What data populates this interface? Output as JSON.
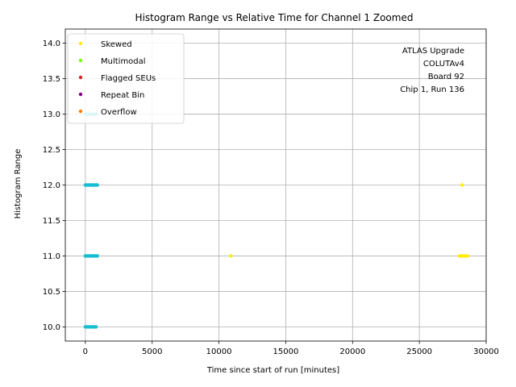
{
  "chart_data": {
    "type": "scatter",
    "title": "Histogram Range vs Relative Time for Channel 1 Zoomed",
    "xlabel": "Time since start of run [minutes]",
    "ylabel": "Histogram Range",
    "xlim": [
      -1500,
      30000
    ],
    "ylim": [
      9.8,
      14.2
    ],
    "xticks": [
      0,
      5000,
      10000,
      15000,
      20000,
      25000,
      30000
    ],
    "xtick_labels": [
      "0",
      "5000",
      "10000",
      "15000",
      "20000",
      "25000",
      "30000"
    ],
    "yticks": [
      10.0,
      10.5,
      11.0,
      11.5,
      12.0,
      12.5,
      13.0,
      13.5,
      14.0
    ],
    "ytick_labels": [
      "10.0",
      "10.5",
      "11.0",
      "11.5",
      "12.0",
      "12.5",
      "13.0",
      "13.5",
      "14.0"
    ],
    "grid": true,
    "legend_position": "top-left",
    "annotation_lines": [
      "ATLAS Upgrade",
      "COLUTAv4",
      "Board 92",
      "Chip 1, Run 136"
    ],
    "series": [
      {
        "name": "",
        "color": "#17becf",
        "points": [
          [
            0,
            10
          ],
          [
            100,
            10
          ],
          [
            200,
            10
          ],
          [
            300,
            10
          ],
          [
            400,
            10
          ],
          [
            500,
            10
          ],
          [
            600,
            10
          ],
          [
            700,
            10
          ],
          [
            800,
            10
          ],
          [
            0,
            11
          ],
          [
            100,
            11
          ],
          [
            200,
            11
          ],
          [
            300,
            11
          ],
          [
            400,
            11
          ],
          [
            500,
            11
          ],
          [
            600,
            11
          ],
          [
            700,
            11
          ],
          [
            800,
            11
          ],
          [
            900,
            11
          ],
          [
            0,
            12
          ],
          [
            100,
            12
          ],
          [
            200,
            12
          ],
          [
            300,
            12
          ],
          [
            400,
            12
          ],
          [
            500,
            12
          ],
          [
            600,
            12
          ],
          [
            700,
            12
          ],
          [
            800,
            12
          ],
          [
            900,
            12
          ],
          [
            0,
            13
          ],
          [
            100,
            13
          ],
          [
            200,
            13
          ],
          [
            300,
            13
          ],
          [
            400,
            13
          ],
          [
            500,
            13
          ],
          [
            600,
            13
          ],
          [
            700,
            13
          ],
          [
            800,
            13
          ]
        ]
      },
      {
        "name": "Skewed",
        "color": "#ffee00",
        "points": [
          [
            10900,
            11
          ],
          [
            28000,
            11
          ],
          [
            28150,
            11
          ],
          [
            28300,
            11
          ],
          [
            28450,
            11
          ],
          [
            28600,
            11
          ],
          [
            28200,
            12
          ]
        ]
      },
      {
        "name": "Multimodal",
        "color": "#7cfc00",
        "points": []
      },
      {
        "name": "Flagged SEUs",
        "color": "#d62728",
        "points": []
      },
      {
        "name": "Repeat Bin",
        "color": "#800080",
        "points": []
      },
      {
        "name": "Overflow",
        "color": "#ff7f0e",
        "points": []
      }
    ]
  }
}
